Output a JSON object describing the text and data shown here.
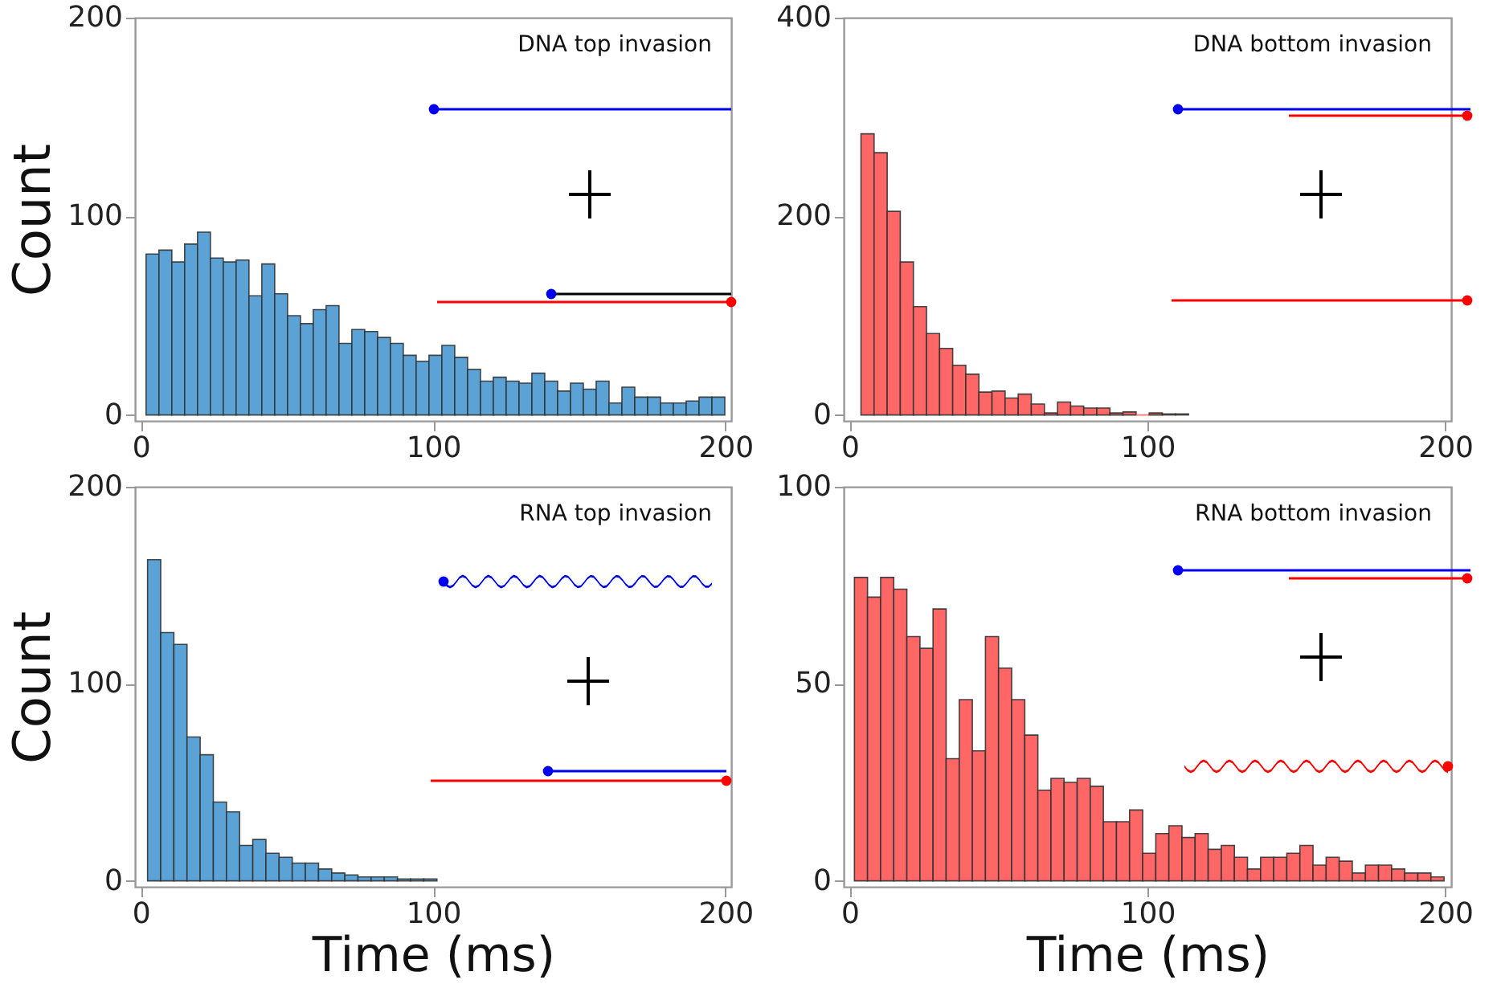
{
  "chart_data": [
    {
      "type": "histogram",
      "annotations": [
        "DNA top invasion"
      ],
      "color": "#5ba3d6",
      "xlim": [
        -2,
        202
      ],
      "xticks": [
        0,
        100,
        200
      ],
      "ylim": [
        -3,
        200
      ],
      "yticks": [
        0,
        100,
        200
      ],
      "ylabel": "Count",
      "bins": [
        1.8,
        6.2,
        10.6,
        15,
        19.4,
        23.8,
        28.2,
        32.6,
        37,
        41.4,
        45.8,
        50.2,
        54.6,
        59,
        63.4,
        67.8,
        72.2,
        76.6,
        81,
        85.4,
        89.8,
        94.2,
        98.6,
        103,
        107.4,
        111.8,
        116.2,
        120.6,
        125,
        129.4,
        133.8,
        138.2,
        142.6,
        147,
        151.4,
        155.8,
        160.2,
        164.6,
        169,
        173.4,
        177.8,
        182.2,
        186.6,
        191,
        195.4,
        199.8
      ],
      "values": [
        81,
        83,
        77,
        86,
        92,
        79,
        77,
        78,
        60,
        76,
        61,
        50,
        46,
        53,
        55,
        36,
        43,
        42,
        39,
        36,
        30,
        27,
        30,
        35,
        29,
        23,
        17,
        19,
        17,
        16,
        21,
        17,
        12,
        16,
        13,
        17,
        6,
        14,
        9,
        9,
        6,
        6,
        7,
        9,
        9
      ]
    },
    {
      "type": "histogram",
      "annotations": [
        "DNA bottom invasion"
      ],
      "color": "#ff6666",
      "xlim": [
        -2,
        202
      ],
      "xticks": [
        0,
        100,
        200
      ],
      "ylim": [
        -6,
        400
      ],
      "yticks": [
        0,
        200,
        400
      ],
      "bins": [
        3.8,
        8.2,
        12.6,
        17,
        21.4,
        25.8,
        30.2,
        34.6,
        39,
        43.4,
        47.8,
        52.2,
        56.6,
        61,
        65.4,
        69.8,
        74.2,
        78.6,
        83,
        87.4,
        91.8,
        96.2,
        100.6,
        105,
        109.4,
        113.8
      ],
      "values": [
        283,
        264,
        205,
        154,
        109,
        82,
        67,
        50,
        41,
        23,
        24,
        17,
        21,
        11,
        2,
        13,
        9,
        7,
        7,
        2,
        3,
        0,
        2,
        1,
        1
      ]
    },
    {
      "type": "histogram",
      "annotations": [
        "RNA top invasion"
      ],
      "color": "#5ba3d6",
      "xlim": [
        -2,
        202
      ],
      "xticks": [
        0,
        100,
        200
      ],
      "ylim": [
        -3,
        200
      ],
      "yticks": [
        0,
        100,
        200
      ],
      "xlabel": "Time (ms)",
      "ylabel": "Count",
      "bins": [
        2.3,
        6.8,
        11.3,
        15.8,
        20.3,
        24.8,
        29.3,
        33.8,
        38.3,
        42.8,
        47.3,
        51.8,
        56.3,
        60.8,
        65.3,
        69.8,
        74.3,
        78.8,
        83.3,
        87.8,
        92.3,
        96.8,
        101.3
      ],
      "values": [
        163,
        126,
        120,
        73,
        64,
        40,
        35,
        18,
        21,
        14,
        12,
        9,
        9,
        6,
        4,
        3,
        2,
        2,
        2,
        1,
        1,
        1
      ]
    },
    {
      "type": "histogram",
      "annotations": [
        "RNA bottom invasion"
      ],
      "color": "#ff6666",
      "xlim": [
        -2,
        202
      ],
      "xticks": [
        0,
        100,
        200
      ],
      "ylim": [
        -1.5,
        100
      ],
      "yticks": [
        0,
        50,
        100
      ],
      "xlabel": "Time (ms)",
      "bins": [
        1.6,
        6,
        10.4,
        14.8,
        19.2,
        23.6,
        28,
        32.4,
        36.8,
        41.2,
        45.6,
        50,
        54.4,
        58.8,
        63.2,
        67.6,
        72,
        76.4,
        80.8,
        85.2,
        89.6,
        94,
        98.4,
        102.8,
        107.2,
        111.6,
        116,
        120.4,
        124.8,
        129.2,
        133.6,
        138,
        142.4,
        146.8,
        151.2,
        155.6,
        160,
        164.4,
        168.8,
        173.2,
        177.6,
        182,
        186.4,
        190.8,
        195.2,
        199.6
      ],
      "values": [
        77,
        72,
        77,
        74,
        62,
        59,
        69,
        31,
        46,
        33,
        62,
        54,
        46,
        37,
        23,
        26,
        25,
        26,
        24,
        15,
        15,
        18,
        7,
        12,
        14,
        11,
        12,
        8,
        9,
        6,
        3,
        6,
        6,
        7,
        9,
        4,
        6,
        5,
        2,
        4,
        4,
        3,
        2,
        2,
        1
      ]
    }
  ]
}
